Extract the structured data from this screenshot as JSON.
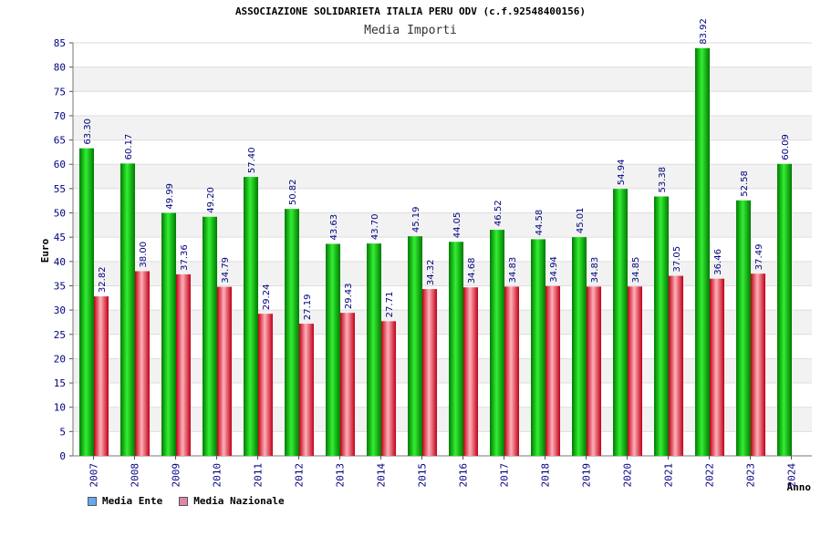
{
  "title": "ASSOCIAZIONE SOLIDARIETA ITALIA PERU ODV (c.f.92548400156)",
  "subtitle": "Media Importi",
  "chart_data": {
    "type": "bar",
    "categories": [
      "2007",
      "2008",
      "2009",
      "2010",
      "2011",
      "2012",
      "2013",
      "2014",
      "2015",
      "2016",
      "2017",
      "2018",
      "2019",
      "2020",
      "2021",
      "2022",
      "2023",
      "2024"
    ],
    "series": [
      {
        "name": "Media Ente",
        "color": "#00bb00",
        "legend_color": "#66aaee",
        "values": [
          63.3,
          60.17,
          49.99,
          49.2,
          57.4,
          50.82,
          43.63,
          43.7,
          45.19,
          44.05,
          46.52,
          44.58,
          45.01,
          54.94,
          53.38,
          83.92,
          52.58,
          60.09
        ],
        "labels": [
          "63.30",
          "60.17",
          "49.99",
          "49.20",
          "57.40",
          "50.82",
          "43.63",
          "43.70",
          "45.19",
          "44.05",
          "46.52",
          "44.58",
          "45.01",
          "54.94",
          "53.38",
          "83.92",
          "52.58",
          "60.09"
        ]
      },
      {
        "name": "Media Nazionale",
        "color": "#dd2233",
        "legend_color": "#dd88aa",
        "values": [
          32.82,
          38.0,
          37.36,
          34.79,
          29.24,
          27.19,
          29.43,
          27.71,
          34.32,
          34.68,
          34.83,
          34.94,
          34.83,
          34.85,
          37.05,
          36.46,
          37.49,
          null
        ],
        "labels": [
          "32.82",
          "38.00",
          "37.36",
          "34.79",
          "29.24",
          "27.19",
          "29.43",
          "27.71",
          "34.32",
          "34.68",
          "34.83",
          "34.94",
          "34.83",
          "34.85",
          "37.05",
          "36.46",
          "37.49",
          ""
        ]
      }
    ],
    "ylabel": "Euro",
    "xlabel": "Anno",
    "ylim": [
      0,
      85
    ],
    "yticks": [
      0,
      5,
      10,
      15,
      20,
      25,
      30,
      35,
      40,
      45,
      50,
      55,
      60,
      65,
      70,
      75,
      80,
      85
    ],
    "grid": true,
    "legend_position": "bottom-left"
  }
}
